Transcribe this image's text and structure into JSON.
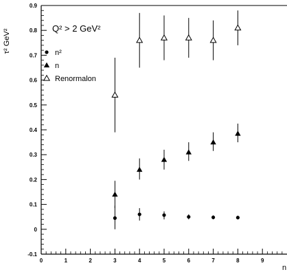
{
  "chart_data": {
    "type": "scatter",
    "title": "",
    "xlabel": "n",
    "ylabel": "τ² GeV²",
    "annotation": "Q² > 2 GeV²",
    "xlim": [
      0,
      10
    ],
    "ylim": [
      -0.1,
      0.9
    ],
    "x_ticks": [
      0,
      1,
      2,
      3,
      4,
      5,
      6,
      7,
      8,
      9
    ],
    "y_ticks": [
      -0.1,
      0,
      0.1,
      0.2,
      0.3,
      0.4,
      0.5,
      0.6,
      0.7,
      0.8,
      0.9
    ],
    "y_tick_labels": [
      "-0.1",
      "0",
      "0.1",
      "0.2",
      "0.3",
      "0.4",
      "0.5",
      "0.6",
      "0.7",
      "0.8",
      "0.9"
    ],
    "grid": false,
    "legend_position": "top-left",
    "series": [
      {
        "name": "n²",
        "marker": "filled-circle",
        "points": [
          {
            "x": 3,
            "y": 0.045,
            "lo": 0.0,
            "hi": 0.095
          },
          {
            "x": 4,
            "y": 0.06,
            "lo": 0.035,
            "hi": 0.085
          },
          {
            "x": 5,
            "y": 0.057,
            "lo": 0.04,
            "hi": 0.072
          },
          {
            "x": 6,
            "y": 0.05,
            "lo": 0.04,
            "hi": 0.06
          },
          {
            "x": 7,
            "y": 0.048,
            "lo": 0.04,
            "hi": 0.056
          },
          {
            "x": 8,
            "y": 0.047,
            "lo": 0.04,
            "hi": 0.054
          }
        ]
      },
      {
        "name": "n",
        "marker": "filled-triangle",
        "points": [
          {
            "x": 3,
            "y": 0.14,
            "lo": 0.085,
            "hi": 0.195
          },
          {
            "x": 4,
            "y": 0.24,
            "lo": 0.2,
            "hi": 0.285
          },
          {
            "x": 5,
            "y": 0.28,
            "lo": 0.24,
            "hi": 0.32
          },
          {
            "x": 6,
            "y": 0.31,
            "lo": 0.275,
            "hi": 0.35
          },
          {
            "x": 7,
            "y": 0.35,
            "lo": 0.315,
            "hi": 0.39
          },
          {
            "x": 8,
            "y": 0.385,
            "lo": 0.35,
            "hi": 0.425
          }
        ]
      },
      {
        "name": "Renormalon",
        "marker": "open-triangle",
        "points": [
          {
            "x": 3,
            "y": 0.54,
            "lo": 0.39,
            "hi": 0.69
          },
          {
            "x": 4,
            "y": 0.76,
            "lo": 0.65,
            "hi": 0.87
          },
          {
            "x": 5,
            "y": 0.77,
            "lo": 0.68,
            "hi": 0.86
          },
          {
            "x": 6,
            "y": 0.77,
            "lo": 0.69,
            "hi": 0.85
          },
          {
            "x": 7,
            "y": 0.76,
            "lo": 0.68,
            "hi": 0.84
          },
          {
            "x": 8,
            "y": 0.81,
            "lo": 0.74,
            "hi": 0.88
          }
        ]
      }
    ]
  }
}
